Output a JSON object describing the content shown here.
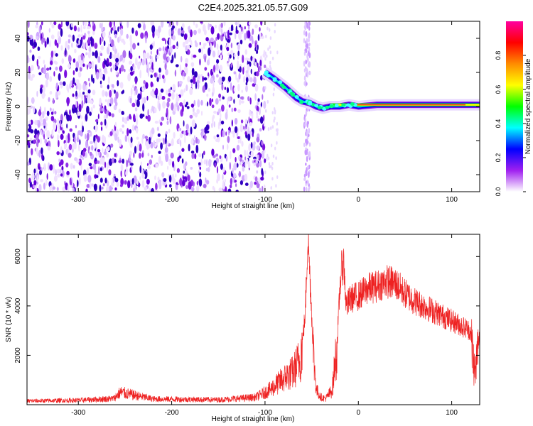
{
  "title": "C2E4.2025.321.05.57.G09",
  "chart_data": [
    {
      "type": "heatmap",
      "title": "C2E4.2025.321.05.57.G09",
      "xlabel": "Height of straight line (km)",
      "ylabel": "Frequency (Hz)",
      "xlim": [
        -355,
        130
      ],
      "ylim": [
        -50,
        50
      ],
      "x_ticks": [
        "-300",
        "-200",
        "-100",
        "0",
        "100"
      ],
      "y_ticks": [
        "-40",
        "-20",
        "0",
        "20",
        "40"
      ],
      "colorbar": {
        "label": "Normalized spectral amplitude",
        "ticks": [
          "0.0",
          "0.2",
          "0.4",
          "0.6",
          "0.8"
        ],
        "range": [
          0,
          1
        ],
        "colors": [
          "#ffffff",
          "#a020f0",
          "#0000ff",
          "#00ffff",
          "#00ff00",
          "#ffff00",
          "#ff8c00",
          "#ff0000",
          "#ff00a0"
        ]
      },
      "noise_region_x": [
        -355,
        -100
      ],
      "noise_stripe_x": -55,
      "signal_track": {
        "x": [
          -100,
          -92,
          -85,
          -78,
          -72,
          -66,
          -60,
          -52,
          -45,
          -38,
          -30,
          -20,
          -10,
          0,
          20,
          50,
          80,
          100,
          130
        ],
        "y": [
          20,
          17,
          14,
          11,
          8,
          5,
          3,
          2,
          0,
          -1,
          0,
          0,
          1,
          0,
          1,
          1,
          1,
          1,
          1
        ],
        "peak_amplitude_x": [
          -30,
          130
        ]
      },
      "grid": false
    },
    {
      "type": "line",
      "xlabel": "Height of straight line (km)",
      "ylabel": "SNR (10 * v/v)",
      "xlim": [
        -355,
        130
      ],
      "ylim": [
        0,
        6900
      ],
      "x_ticks": [
        "-300",
        "-200",
        "-100",
        "0",
        "100"
      ],
      "y_ticks": [
        "2000",
        "4000",
        "6000"
      ],
      "color": "#ee2222",
      "series": [
        {
          "x": [
            -355,
            -300,
            -262,
            -255,
            -220,
            -150,
            -110,
            -95,
            -85,
            -75,
            -70,
            -62,
            -57,
            -54,
            -51,
            -48,
            -45,
            -40,
            -35,
            -28,
            -23,
            -19,
            -16,
            -13,
            -8,
            0,
            10,
            20,
            30,
            40,
            50,
            60,
            70,
            80,
            90,
            100,
            110,
            120,
            125,
            130
          ],
          "y": [
            150,
            180,
            250,
            500,
            230,
            200,
            300,
            600,
            900,
            1200,
            1300,
            1900,
            3600,
            6900,
            4500,
            2000,
            600,
            300,
            250,
            600,
            2400,
            5200,
            5900,
            4000,
            4300,
            4400,
            4700,
            4800,
            5000,
            4900,
            4500,
            4200,
            4000,
            3800,
            3600,
            3400,
            3200,
            3000,
            1200,
            3000
          ]
        }
      ],
      "grid": false
    }
  ]
}
